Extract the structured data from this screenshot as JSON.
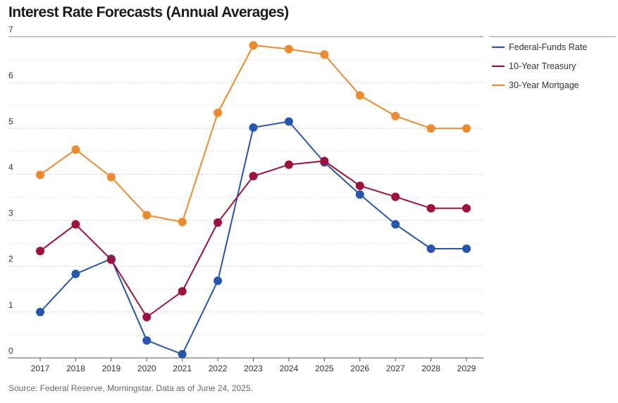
{
  "title": "Interest Rate Forecasts (Annual Averages)",
  "source": "Source: Federal Reserve, Morningstar. Data as of June 24, 2025.",
  "colors": {
    "federal_funds": "#2457b3",
    "treasury": "#a0103a",
    "mortgage": "#ef8a2a"
  },
  "chart_data": {
    "type": "line",
    "title": "Interest Rate Forecasts (Annual Averages)",
    "xlabel": "",
    "ylabel": "",
    "x": [
      "2017",
      "2018",
      "2019",
      "2020",
      "2021",
      "2022",
      "2023",
      "2024",
      "2025",
      "2026",
      "2027",
      "2028",
      "2029"
    ],
    "y_ticks": [
      "0",
      "1",
      "2",
      "3",
      "4",
      "5",
      "6",
      "7"
    ],
    "ylim": [
      0,
      7
    ],
    "grid": "horizontal dotted",
    "legend_position": "top-right",
    "series": [
      {
        "name": "Federal-Funds Rate",
        "color": "#2457b3",
        "values": [
          1.0,
          1.83,
          2.16,
          0.38,
          0.08,
          1.68,
          5.02,
          5.15,
          4.26,
          3.56,
          2.91,
          2.38,
          2.38
        ]
      },
      {
        "name": "10-Year Treasury",
        "color": "#a0103a",
        "values": [
          2.33,
          2.91,
          2.14,
          0.89,
          1.45,
          2.95,
          3.96,
          4.21,
          4.29,
          3.75,
          3.51,
          3.26,
          3.26
        ]
      },
      {
        "name": "30-Year Mortgage",
        "color": "#ef8a2a",
        "values": [
          3.99,
          4.54,
          3.94,
          3.11,
          2.96,
          5.34,
          6.81,
          6.73,
          6.61,
          5.72,
          5.27,
          5.0,
          5.0
        ]
      }
    ]
  }
}
